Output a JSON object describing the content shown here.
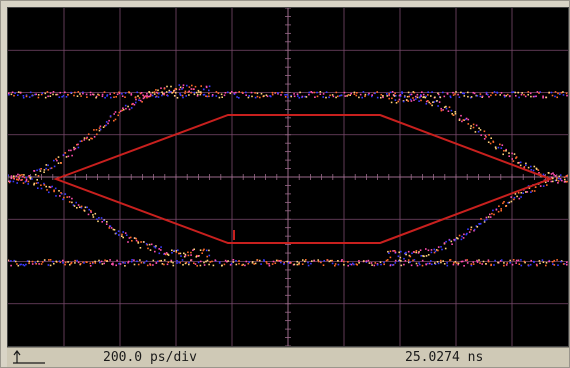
{
  "status_bar": {
    "timebase": "200.0 ps/div",
    "time_position": "25.0274 ns"
  },
  "colors": {
    "screen_background": "#000000",
    "graticule": "#7a4a6c",
    "mask": "#c8201e",
    "trace_primary": "#3b3bff",
    "trace_secondary": "#ff6a2a",
    "trace_tertiary": "#ff4fb0",
    "status_bar_background": "#cfc9b6"
  },
  "icons": {
    "ground_marker": "ground-reference-icon"
  }
}
